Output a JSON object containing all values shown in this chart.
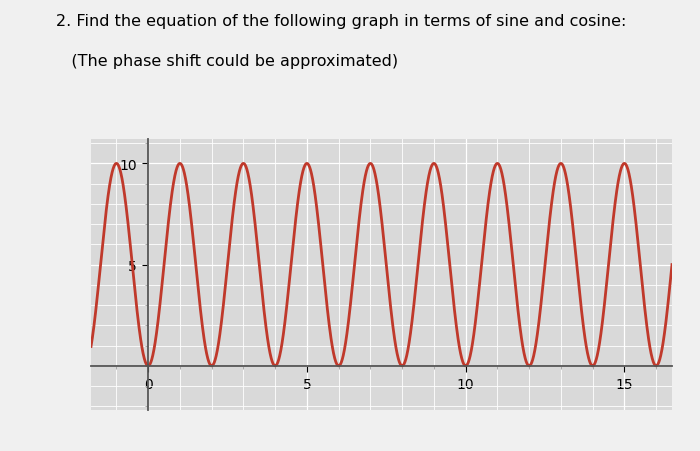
{
  "title_line1": "2. Find the equation of the following graph in terms of sine and cosine:",
  "title_line2": "   (The phase shift could be approximated)",
  "title_fontsize": 11.5,
  "xmin": -1.8,
  "xmax": 16.5,
  "ymin": -2.2,
  "ymax": 11.2,
  "amplitude": 5,
  "vertical_shift": 5,
  "period": 2,
  "phase_shift": 0.5,
  "line_color": "#c0392b",
  "line_width": 2.0,
  "bg_color": "#ebebeb",
  "grid_color": "#ffffff",
  "xticks": [
    0,
    5,
    10,
    15
  ],
  "yticks": [
    5,
    10
  ],
  "axis_label_fontsize": 10,
  "plot_bg": "#d9d9d9",
  "fig_bg": "#f0f0f0"
}
